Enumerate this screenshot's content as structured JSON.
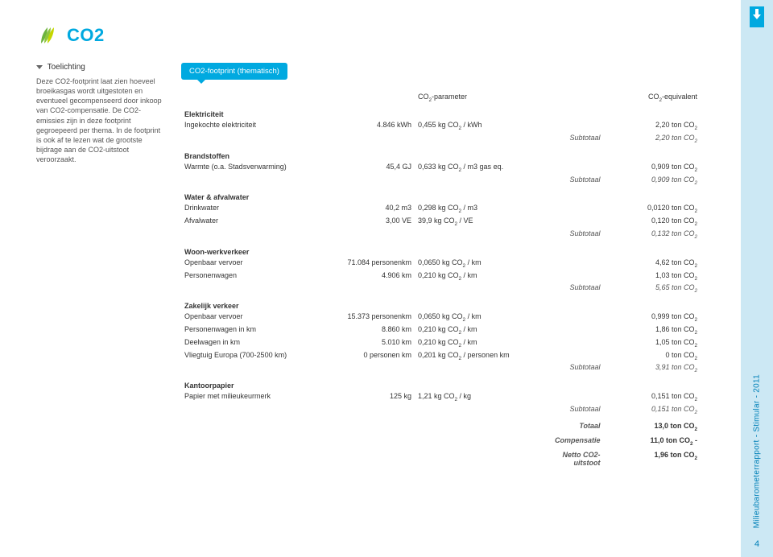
{
  "title": "CO2",
  "sidebar": {
    "heading": "Toelichting",
    "text": "Deze CO2-footprint laat zien hoeveel broeikasgas wordt uitgestoten en eventueel gecompenseerd door inkoop van CO2-compensatie. De CO2-emissies zijn in deze footprint gegroepeerd per thema. In de footprint is ook af te lezen wat de grootste bijdrage aan de CO2-uitstoot veroorzaakt."
  },
  "badge": "CO2-footprint (thematisch)",
  "headers": {
    "param": "CO₂-parameter",
    "equiv": "CO₂-equivalent"
  },
  "sections": [
    {
      "name": "Elektriciteit",
      "rows": [
        {
          "label": "Ingekochte elektriciteit",
          "amount": "4.846 kWh",
          "param": "0,455 kg CO₂ / kWh",
          "equiv": "2,20 ton CO₂"
        }
      ],
      "subtotal": "2,20 ton CO₂"
    },
    {
      "name": "Brandstoffen",
      "rows": [
        {
          "label": "Warmte (o.a. Stadsverwarming)",
          "amount": "45,4 GJ",
          "param": "0,633 kg CO₂ / m3 gas eq.",
          "equiv": "0,909 ton CO₂"
        }
      ],
      "subtotal": "0,909 ton CO₂"
    },
    {
      "name": "Water & afvalwater",
      "rows": [
        {
          "label": "Drinkwater",
          "amount": "40,2 m3",
          "param": "0,298 kg CO₂ / m3",
          "equiv": "0,0120 ton CO₂"
        },
        {
          "label": "Afvalwater",
          "amount": "3,00 VE",
          "param": "39,9 kg CO₂ / VE",
          "equiv": "0,120 ton CO₂"
        }
      ],
      "subtotal": "0,132 ton CO₂"
    },
    {
      "name": "Woon-werkverkeer",
      "rows": [
        {
          "label": "Openbaar vervoer",
          "amount": "71.084 personenkm",
          "param": "0,0650 kg CO₂ / km",
          "equiv": "4,62 ton CO₂"
        },
        {
          "label": "Personenwagen",
          "amount": "4.906 km",
          "param": "0,210 kg CO₂ / km",
          "equiv": "1,03 ton CO₂"
        }
      ],
      "subtotal": "5,65 ton CO₂"
    },
    {
      "name": "Zakelijk verkeer",
      "rows": [
        {
          "label": "Openbaar vervoer",
          "amount": "15.373 personenkm",
          "param": "0,0650 kg CO₂ / km",
          "equiv": "0,999 ton CO₂"
        },
        {
          "label": "Personenwagen in km",
          "amount": "8.860 km",
          "param": "0,210 kg CO₂ / km",
          "equiv": "1,86 ton CO₂"
        },
        {
          "label": "Deelwagen in km",
          "amount": "5.010 km",
          "param": "0,210 kg CO₂ / km",
          "equiv": "1,05 ton CO₂"
        },
        {
          "label": "Vliegtuig Europa (700-2500 km)",
          "amount": "0 personen km",
          "param": "0,201 kg CO₂ / personen km",
          "equiv": "0 ton CO₂"
        }
      ],
      "subtotal": "3,91 ton CO₂"
    },
    {
      "name": "Kantoorpapier",
      "rows": [
        {
          "label": "Papier met milieukeurmerk",
          "amount": "125 kg",
          "param": "1,21 kg CO₂ / kg",
          "equiv": "0,151 ton CO₂"
        }
      ],
      "subtotal": "0,151 ton CO₂"
    }
  ],
  "totals": [
    {
      "label": "Totaal",
      "value": "13,0 ton CO₂"
    },
    {
      "label": "Compensatie",
      "value": "11,0 ton CO₂ -"
    },
    {
      "label": "Netto CO2-uitstoot",
      "value": "1,96 ton CO₂"
    }
  ],
  "subtotal_label": "Subtotaal",
  "rightbar": {
    "text": "Milieubarometerrapport - Stimular - 2011",
    "page": "4"
  }
}
